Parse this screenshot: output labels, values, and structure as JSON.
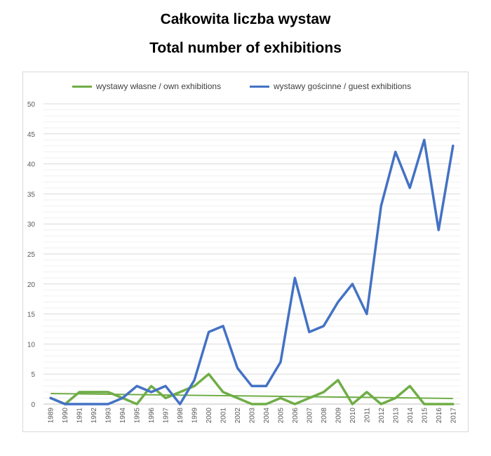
{
  "title_pl": "Całkowita liczba wystaw",
  "title_en": "Total number of exhibitions",
  "chart_data": {
    "type": "line",
    "x": [
      "1989",
      "1990",
      "1991",
      "1992",
      "1993",
      "1994",
      "1995",
      "1996",
      "1997",
      "1998",
      "1999",
      "2000",
      "2001",
      "2002",
      "2003",
      "2004",
      "2005",
      "2006",
      "2007",
      "2008",
      "2009",
      "2010",
      "2011",
      "2012",
      "2013",
      "2014",
      "2015",
      "2016",
      "2017"
    ],
    "series": [
      {
        "name": "wystawy własne / own exhibitions",
        "color": "#70ad47",
        "values": [
          1,
          0,
          2,
          2,
          2,
          1,
          0,
          3,
          1,
          2,
          3,
          5,
          2,
          1,
          0,
          0,
          1,
          0,
          1,
          2,
          4,
          0,
          2,
          0,
          1,
          3,
          0,
          0,
          0
        ],
        "trendline": true
      },
      {
        "name": "wystawy gościnne / guest exhibitions",
        "color": "#4472c4",
        "values": [
          1,
          0,
          0,
          0,
          0,
          1,
          3,
          2,
          3,
          0,
          4,
          12,
          13,
          6,
          3,
          3,
          7,
          21,
          12,
          13,
          17,
          20,
          15,
          33,
          42,
          36,
          44,
          29,
          43
        ]
      }
    ],
    "ylim": [
      0,
      50
    ],
    "yticks": [
      0,
      5,
      10,
      15,
      20,
      25,
      30,
      35,
      40,
      45,
      50
    ],
    "grid": true,
    "legend": "top"
  }
}
